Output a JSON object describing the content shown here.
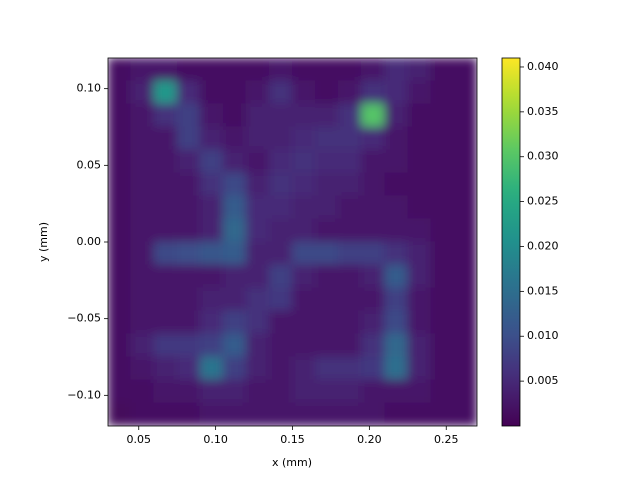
{
  "chart_data": {
    "type": "heatmap",
    "colormap": "viridis",
    "xlabel": "x (mm)",
    "ylabel": "y (mm)",
    "xlim": [
      0.03,
      0.27
    ],
    "ylim": [
      -0.12,
      0.12
    ],
    "xticks": [
      0.05,
      {
        "value": 0.1,
        "label": "0.10"
      },
      0.15,
      {
        "value": 0.2,
        "label": "0.20"
      },
      0.25
    ],
    "yticks": [
      {
        "value": -0.1,
        "label": "−0.10"
      },
      {
        "value": -0.05,
        "label": "−0.05"
      },
      {
        "value": 0,
        "label": "0.00"
      },
      0.05,
      {
        "value": 0.1,
        "label": "0.10"
      }
    ],
    "clim": [
      0,
      0.041
    ],
    "cticks": [
      0.005,
      {
        "value": 0.01,
        "label": "0.010"
      },
      0.015,
      {
        "value": 0.02,
        "label": "0.020"
      },
      0.025,
      {
        "value": 0.03,
        "label": "0.030"
      },
      0.035,
      {
        "value": 0.04,
        "label": "0.040"
      }
    ],
    "values": [
      [
        0.002,
        0.003,
        0.003,
        0.002,
        0.002,
        0.002,
        0.002,
        0.003,
        0.002,
        0.002,
        0.002,
        0.003,
        0.005,
        0.004,
        0.002,
        0.002
      ],
      [
        0.002,
        0.004,
        0.022,
        0.005,
        0.002,
        0.002,
        0.003,
        0.006,
        0.003,
        0.002,
        0.003,
        0.006,
        0.005,
        0.003,
        0.002,
        0.002
      ],
      [
        0.002,
        0.003,
        0.006,
        0.008,
        0.003,
        0.002,
        0.004,
        0.004,
        0.004,
        0.004,
        0.006,
        0.03,
        0.004,
        0.002,
        0.002,
        0.002
      ],
      [
        0.002,
        0.003,
        0.003,
        0.008,
        0.004,
        0.003,
        0.004,
        0.004,
        0.005,
        0.006,
        0.006,
        0.005,
        0.003,
        0.002,
        0.002,
        0.002
      ],
      [
        0.002,
        0.003,
        0.003,
        0.004,
        0.008,
        0.004,
        0.003,
        0.005,
        0.006,
        0.005,
        0.005,
        0.003,
        0.003,
        0.002,
        0.002,
        0.002
      ],
      [
        0.002,
        0.003,
        0.003,
        0.003,
        0.006,
        0.009,
        0.004,
        0.006,
        0.005,
        0.004,
        0.004,
        0.003,
        0.002,
        0.002,
        0.002,
        0.002
      ],
      [
        0.002,
        0.003,
        0.003,
        0.003,
        0.004,
        0.012,
        0.005,
        0.005,
        0.004,
        0.004,
        0.003,
        0.003,
        0.003,
        0.002,
        0.002,
        0.002
      ],
      [
        0.002,
        0.003,
        0.003,
        0.003,
        0.004,
        0.014,
        0.005,
        0.004,
        0.004,
        0.003,
        0.003,
        0.003,
        0.003,
        0.003,
        0.002,
        0.002
      ],
      [
        0.002,
        0.003,
        0.009,
        0.01,
        0.011,
        0.012,
        0.004,
        0.004,
        0.009,
        0.009,
        0.008,
        0.008,
        0.006,
        0.004,
        0.002,
        0.002
      ],
      [
        0.002,
        0.003,
        0.003,
        0.003,
        0.003,
        0.004,
        0.004,
        0.008,
        0.004,
        0.003,
        0.003,
        0.004,
        0.012,
        0.004,
        0.002,
        0.002
      ],
      [
        0.002,
        0.003,
        0.003,
        0.003,
        0.004,
        0.004,
        0.006,
        0.007,
        0.003,
        0.003,
        0.003,
        0.003,
        0.008,
        0.003,
        0.002,
        0.002
      ],
      [
        0.002,
        0.003,
        0.003,
        0.003,
        0.005,
        0.008,
        0.006,
        0.003,
        0.003,
        0.003,
        0.003,
        0.004,
        0.009,
        0.003,
        0.002,
        0.002
      ],
      [
        0.002,
        0.004,
        0.007,
        0.007,
        0.008,
        0.012,
        0.004,
        0.003,
        0.003,
        0.003,
        0.003,
        0.006,
        0.014,
        0.004,
        0.002,
        0.002
      ],
      [
        0.002,
        0.003,
        0.004,
        0.005,
        0.016,
        0.008,
        0.004,
        0.003,
        0.004,
        0.006,
        0.006,
        0.007,
        0.015,
        0.004,
        0.002,
        0.002
      ],
      [
        0.002,
        0.002,
        0.003,
        0.003,
        0.004,
        0.004,
        0.003,
        0.003,
        0.004,
        0.004,
        0.004,
        0.003,
        0.003,
        0.003,
        0.002,
        0.002
      ],
      [
        0.001,
        0.002,
        0.002,
        0.002,
        0.003,
        0.003,
        0.003,
        0.003,
        0.003,
        0.003,
        0.003,
        0.003,
        0.002,
        0.002,
        0.002,
        0.002
      ]
    ]
  }
}
